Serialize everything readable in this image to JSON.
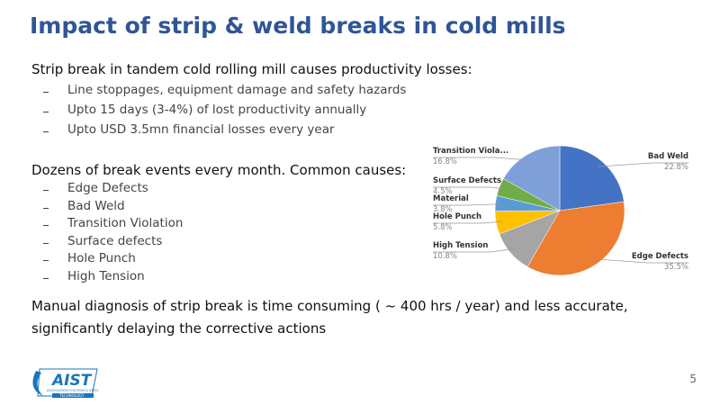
{
  "title": "Impact of strip & weld breaks in cold mills",
  "sections": [
    {
      "heading": "Strip break in tandem cold rolling mill causes productivity losses:",
      "bullets": [
        "Line stoppages, equipment damage and safety hazards",
        "Upto 15 days (3-4%) of lost productivity annually",
        "Upto USD 3.5mn financial losses every year"
      ]
    },
    {
      "heading": "Dozens of break events every month. Common causes:",
      "bullets": [
        "Edge Defects",
        "Bad Weld",
        "Transition Violation",
        "Surface defects",
        "Hole Punch",
        "High Tension"
      ]
    }
  ],
  "conclusion": "Manual diagnosis of strip break is time consuming ( ~ 400 hrs / year) and less accurate, significantly delaying the corrective actions",
  "page_number": "5",
  "logo": {
    "text": "AIST",
    "tagline": "ASSOCIATION FOR IRON & STEEL",
    "sub": "TECHNOLOGY"
  },
  "chart_data": {
    "type": "pie",
    "categories": [
      "Bad Weld",
      "Edge Defects",
      "High Tension",
      "Hole Punch",
      "Material",
      "Surface Defects",
      "Transition Viola..."
    ],
    "values": [
      22.8,
      35.5,
      10.8,
      5.8,
      3.8,
      4.5,
      16.8
    ],
    "value_labels": [
      "22.8%",
      "35.5%",
      "10.8%",
      "5.8%",
      "3.8%",
      "4.5%",
      "16.8%"
    ],
    "colors": [
      "#4472c4",
      "#ed7d31",
      "#a5a5a5",
      "#ffc000",
      "#5b9bd5",
      "#70ad47",
      "#7f9fd8"
    ]
  }
}
